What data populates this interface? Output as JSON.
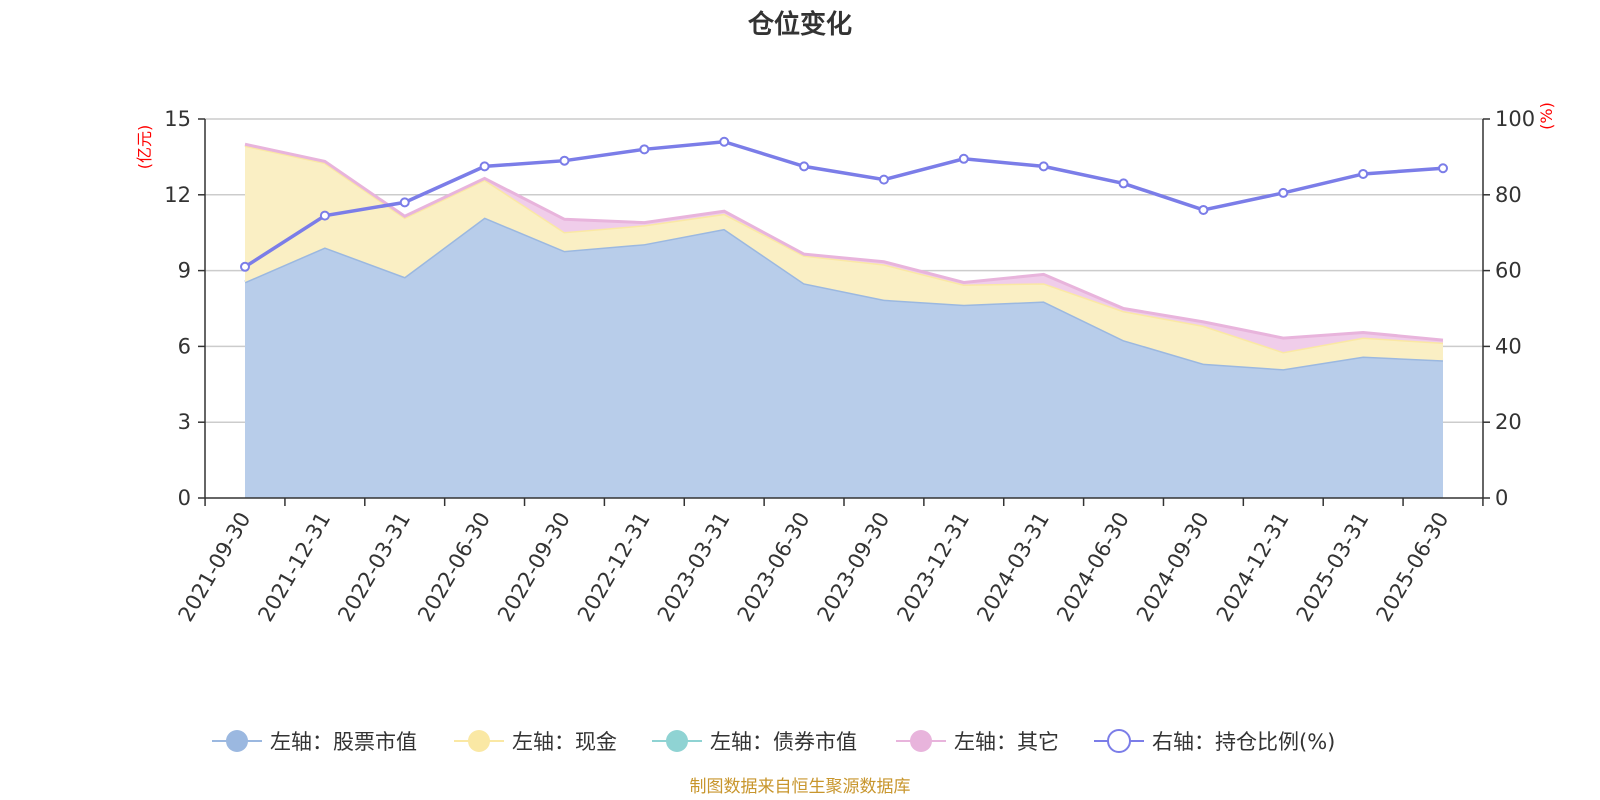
{
  "chart_data": {
    "type": "area",
    "title": "仓位变化",
    "left_unit": "(亿元)",
    "right_unit": "(%)",
    "x": [
      "2021-09-30",
      "2021-12-31",
      "2022-03-31",
      "2022-06-30",
      "2022-09-30",
      "2022-12-31",
      "2023-03-31",
      "2023-06-30",
      "2023-09-30",
      "2023-12-31",
      "2024-03-31",
      "2024-06-30",
      "2024-09-30",
      "2024-12-31",
      "2025-03-31",
      "2025-06-30"
    ],
    "left_axis": {
      "ylim": [
        0,
        15
      ],
      "ticks": [
        0,
        3,
        6,
        9,
        12,
        15
      ]
    },
    "right_axis": {
      "ylim": [
        0,
        100
      ],
      "ticks": [
        0,
        20,
        40,
        60,
        80,
        100
      ]
    },
    "grid": true,
    "stacked": true,
    "series": [
      {
        "name": "左轴：股票市值",
        "axis": "left",
        "kind": "area",
        "color": "#9bb8e0",
        "fill": "#b8cdea",
        "values": [
          8.55,
          9.92,
          8.75,
          11.1,
          9.78,
          10.05,
          10.65,
          8.5,
          7.85,
          7.65,
          7.78,
          6.25,
          5.32,
          5.1,
          5.6,
          5.45
        ]
      },
      {
        "name": "左轴：现金",
        "axis": "left",
        "kind": "area",
        "color": "#fae8a4",
        "fill": "#faefc4",
        "values": [
          5.4,
          3.35,
          2.35,
          1.5,
          0.75,
          0.75,
          0.6,
          1.1,
          1.4,
          0.8,
          0.72,
          1.15,
          1.5,
          0.68,
          0.75,
          0.7
        ]
      },
      {
        "name": "左轴：债券市值",
        "axis": "left",
        "kind": "area",
        "color": "#8fd3d3",
        "fill": "#b4e4e4",
        "values": [
          0,
          0,
          0,
          0,
          0,
          0,
          0,
          0,
          0,
          0,
          0,
          0,
          0,
          0,
          0,
          0
        ]
      },
      {
        "name": "左轴：其它",
        "axis": "left",
        "kind": "area",
        "color": "#e8b4dc",
        "fill": "#f0cdea",
        "values": [
          0.05,
          0.05,
          0.05,
          0.05,
          0.5,
          0.1,
          0.1,
          0.05,
          0.1,
          0.08,
          0.35,
          0.1,
          0.15,
          0.55,
          0.2,
          0.1
        ]
      },
      {
        "name": "右轴：持仓比例(%)",
        "axis": "right",
        "kind": "line",
        "color": "#7b7de8",
        "values": [
          61,
          74.5,
          78,
          87.5,
          89,
          92,
          94,
          87.5,
          84,
          89.5,
          87.5,
          83,
          76,
          80.5,
          85.5,
          87
        ]
      }
    ]
  },
  "source": "制图数据来自恒生聚源数据库"
}
